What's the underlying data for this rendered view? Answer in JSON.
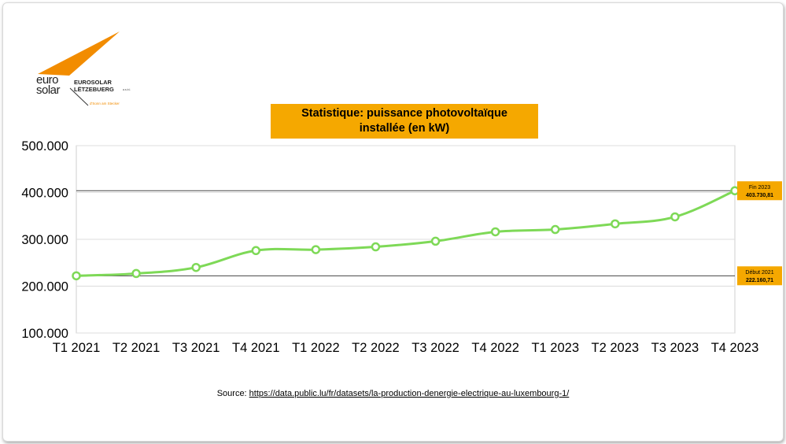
{
  "logo": {
    "wordmark_top": "euro",
    "wordmark_bottom": "solar",
    "name_line1": "EUROSOLAR",
    "name_line2": "LËTZEBUERG",
    "suffix": "a.s.b.l.",
    "tagline": "d'Sonn am Stecker",
    "accent_color": "#f28c00"
  },
  "title": {
    "line1": "Statistique: puissance photovoltaïque",
    "line2": "installée (en kW)",
    "background": "#f5a800"
  },
  "source": {
    "prefix": "Source: ",
    "url": "https://data.public.lu/fr/datasets/la-production-denergie-electrique-au-luxembourg-1/"
  },
  "chart_data": {
    "type": "line",
    "title": "Statistique: puissance photovoltaïque installée (en kW)",
    "categories": [
      "T1 2021",
      "T2 2021",
      "T3 2021",
      "T4 2021",
      "T1 2022",
      "T2 2022",
      "T3 2022",
      "T4 2022",
      "T1 2023",
      "T2 2023",
      "T3 2023",
      "T4 2023"
    ],
    "series": [
      {
        "values": [
          222160.71,
          227000,
          240000,
          276000,
          278000,
          284000,
          296000,
          316000,
          321000,
          333000,
          348000,
          403730.81
        ],
        "color": "#7ed957"
      }
    ],
    "ylim": [
      100000,
      500000
    ],
    "yticks": [
      100000,
      200000,
      300000,
      400000,
      500000
    ],
    "ytick_labels": [
      "100.000",
      "200.000",
      "300.000",
      "400.000",
      "500.000"
    ],
    "grid": true,
    "reference_lines": [
      {
        "value": 403730.81
      },
      {
        "value": 222160.71
      }
    ],
    "annotations": [
      {
        "label": "Fin 2023",
        "value_text": "403.730,81",
        "value": 403730.81
      },
      {
        "label": "Début 2021",
        "value_text": "222.160,71",
        "value": 222160.71
      }
    ],
    "annotation_color": "#f5a800"
  }
}
